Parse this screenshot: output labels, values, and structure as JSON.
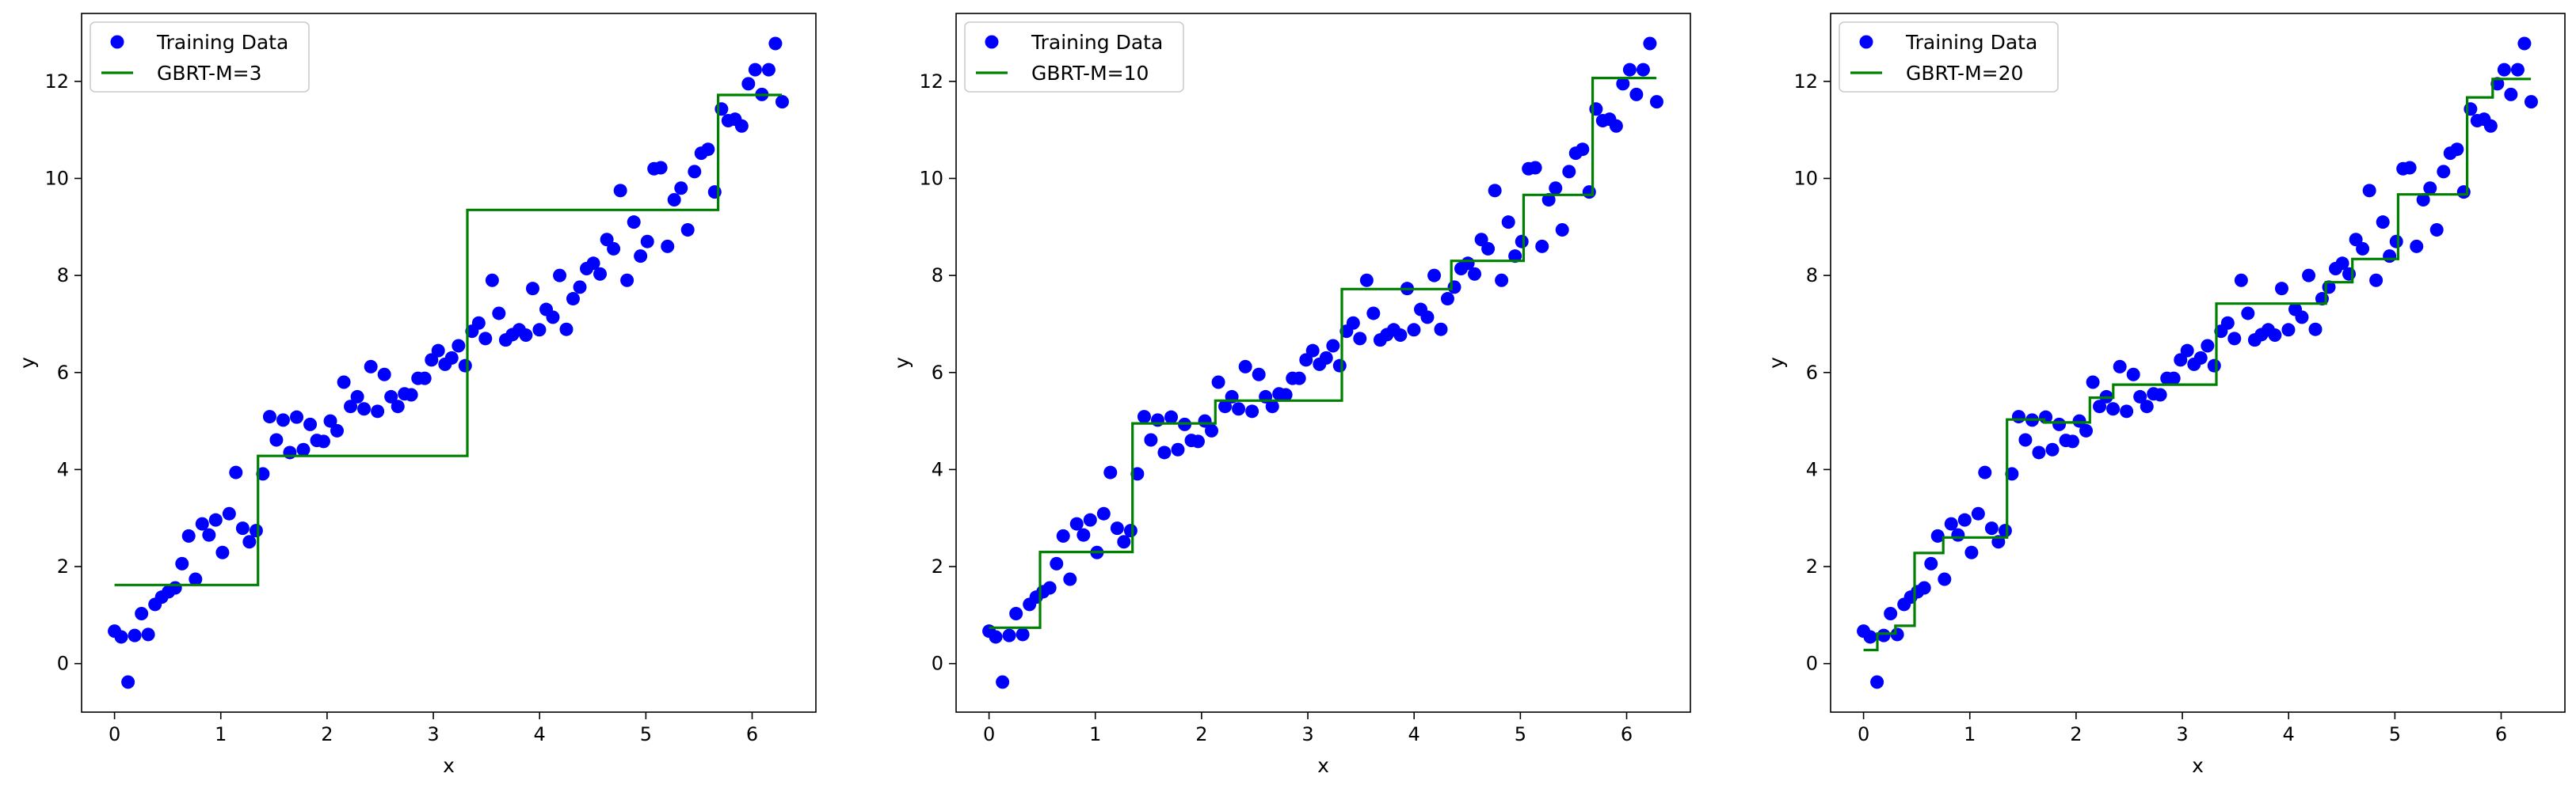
{
  "colors": {
    "points": "#0000ff",
    "line": "#008000"
  },
  "chart_data": [
    {
      "type": "line",
      "xlabel": "x",
      "ylabel": "y",
      "xlim": [
        -0.31,
        6.6
      ],
      "ylim": [
        -1.0,
        13.4
      ],
      "xticks": [
        0,
        1,
        2,
        3,
        4,
        5,
        6
      ],
      "yticks": [
        0,
        2,
        4,
        6,
        8,
        10,
        12
      ],
      "legend": {
        "position": "upper-left",
        "entries": [
          "Training Data",
          "GBRT-M=3"
        ]
      },
      "series": [
        {
          "name": "Training Data",
          "kind": "scatter",
          "x_ref": "training_data.x",
          "y_ref": "training_data.y"
        },
        {
          "name": "GBRT-M=3",
          "kind": "step",
          "x": [
            0,
            1.35,
            1.35,
            3.32,
            3.32,
            5.68,
            5.68,
            6.28
          ],
          "y": [
            1.62,
            1.62,
            4.28,
            4.28,
            9.35,
            9.35,
            11.72,
            11.72
          ]
        }
      ]
    },
    {
      "type": "line",
      "xlabel": "x",
      "ylabel": "y",
      "xlim": [
        -0.31,
        6.6
      ],
      "ylim": [
        -1.0,
        13.4
      ],
      "xticks": [
        0,
        1,
        2,
        3,
        4,
        5,
        6
      ],
      "yticks": [
        0,
        2,
        4,
        6,
        8,
        10,
        12
      ],
      "legend": {
        "position": "upper-left",
        "entries": [
          "Training Data",
          "GBRT-M=10"
        ]
      },
      "series": [
        {
          "name": "Training Data",
          "kind": "scatter",
          "x_ref": "training_data.x",
          "y_ref": "training_data.y"
        },
        {
          "name": "GBRT-M=10",
          "kind": "step",
          "x": [
            0,
            0.48,
            0.48,
            1.35,
            1.35,
            2.13,
            2.13,
            3.32,
            3.32,
            4.35,
            4.35,
            5.03,
            5.03,
            5.68,
            5.68,
            6.28
          ],
          "y": [
            0.74,
            0.74,
            2.3,
            2.3,
            4.95,
            4.95,
            5.42,
            5.42,
            7.72,
            7.72,
            8.3,
            8.3,
            9.66,
            9.66,
            12.07,
            12.07
          ]
        }
      ]
    },
    {
      "type": "line",
      "xlabel": "x",
      "ylabel": "y",
      "xlim": [
        -0.31,
        6.6
      ],
      "ylim": [
        -1.0,
        13.4
      ],
      "xticks": [
        0,
        1,
        2,
        3,
        4,
        5,
        6
      ],
      "yticks": [
        0,
        2,
        4,
        6,
        8,
        10,
        12
      ],
      "legend": {
        "position": "upper-left",
        "entries": [
          "Training Data",
          "GBRT-M=20"
        ]
      },
      "series": [
        {
          "name": "Training Data",
          "kind": "scatter",
          "x_ref": "training_data.x",
          "y_ref": "training_data.y"
        },
        {
          "name": "GBRT-M=20",
          "kind": "step",
          "x": [
            0,
            0.13,
            0.13,
            0.3,
            0.3,
            0.48,
            0.48,
            0.75,
            0.75,
            1.35,
            1.35,
            1.7,
            1.7,
            2.13,
            2.13,
            2.35,
            2.35,
            3.32,
            3.32,
            4.35,
            4.35,
            4.6,
            4.6,
            5.03,
            5.03,
            5.68,
            5.68,
            5.92,
            5.92,
            6.28
          ],
          "y": [
            0.28,
            0.28,
            0.62,
            0.62,
            0.78,
            0.78,
            2.28,
            2.28,
            2.6,
            2.6,
            5.03,
            5.03,
            4.97,
            4.97,
            5.48,
            5.48,
            5.75,
            5.75,
            7.42,
            7.42,
            7.86,
            7.86,
            8.34,
            8.34,
            9.67,
            9.67,
            11.67,
            11.67,
            12.05,
            12.05
          ]
        }
      ]
    }
  ],
  "training_data": {
    "x": [
      0.0,
      0.063,
      0.127,
      0.19,
      0.254,
      0.317,
      0.381,
      0.444,
      0.508,
      0.571,
      0.635,
      0.698,
      0.762,
      0.825,
      0.889,
      0.952,
      1.016,
      1.079,
      1.142,
      1.206,
      1.269,
      1.333,
      1.396,
      1.46,
      1.523,
      1.587,
      1.65,
      1.714,
      1.777,
      1.841,
      1.904,
      1.967,
      2.031,
      2.094,
      2.158,
      2.221,
      2.285,
      2.348,
      2.412,
      2.475,
      2.539,
      2.602,
      2.666,
      2.729,
      2.792,
      2.856,
      2.919,
      2.983,
      3.046,
      3.11,
      3.173,
      3.237,
      3.3,
      3.364,
      3.427,
      3.49,
      3.554,
      3.617,
      3.681,
      3.744,
      3.808,
      3.871,
      3.935,
      3.998,
      4.062,
      4.125,
      4.189,
      4.252,
      4.315,
      4.379,
      4.442,
      4.506,
      4.569,
      4.633,
      4.696,
      4.76,
      4.823,
      4.887,
      4.95,
      5.014,
      5.077,
      5.14,
      5.204,
      5.267,
      5.331,
      5.394,
      5.458,
      5.521,
      5.585,
      5.648,
      5.712,
      5.775,
      5.839,
      5.902,
      5.965,
      6.029,
      6.092,
      6.156,
      6.219,
      6.283
    ],
    "y": [
      0.67,
      0.55,
      -0.38,
      0.58,
      1.03,
      0.6,
      1.22,
      1.37,
      1.48,
      1.56,
      2.06,
      2.63,
      1.74,
      2.88,
      2.65,
      2.96,
      2.29,
      3.09,
      3.94,
      2.79,
      2.51,
      2.74,
      3.91,
      5.09,
      4.61,
      5.02,
      4.35,
      5.08,
      4.41,
      4.93,
      4.6,
      4.58,
      5.0,
      4.8,
      5.8,
      5.3,
      5.5,
      5.25,
      6.12,
      5.2,
      5.96,
      5.5,
      5.3,
      5.56,
      5.54,
      5.88,
      5.88,
      6.26,
      6.45,
      6.17,
      6.3,
      6.55,
      6.14,
      6.85,
      7.02,
      6.7,
      7.9,
      7.22,
      6.67,
      6.78,
      6.88,
      6.77,
      7.73,
      6.88,
      7.3,
      7.14,
      8.0,
      6.89,
      7.52,
      7.76,
      8.14,
      8.25,
      8.03,
      8.74,
      8.55,
      9.75,
      7.9,
      9.1,
      8.4,
      8.7,
      10.2,
      10.22,
      8.6,
      9.56,
      9.8,
      8.94,
      10.14,
      10.52,
      10.6,
      9.72,
      11.43,
      11.19,
      11.22,
      11.08,
      11.95,
      12.24,
      11.73,
      12.24,
      12.78,
      11.58
    ]
  }
}
